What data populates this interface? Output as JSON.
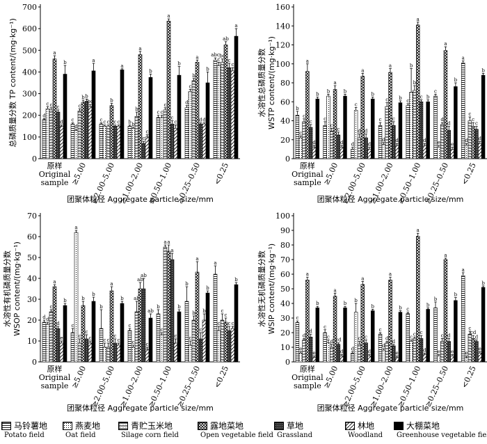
{
  "figure": {
    "categories": [
      "原样\nOriginal\nsample",
      "≥5.00",
      "≥2.00–5.00",
      "≥1.00–2.00",
      "≥0.50–1.00",
      "≥0.25–0.50",
      "<0.25"
    ],
    "xlabel": "团聚体粒径 Aggregate particle size/mm"
  },
  "legend": {
    "items": [
      {
        "cn": "马铃薯地",
        "en": "Potato field",
        "pattern": "p0"
      },
      {
        "cn": "燕麦地",
        "en": "Oat field",
        "pattern": "p1"
      },
      {
        "cn": "青贮玉米地",
        "en": "Silage corn field",
        "pattern": "p2"
      },
      {
        "cn": "露地菜地",
        "en": "Open vegetable field",
        "pattern": "p3"
      },
      {
        "cn": "草地",
        "en": "Grassland",
        "pattern": "p4"
      },
      {
        "cn": "林地",
        "en": "Woodland",
        "pattern": "p5"
      },
      {
        "cn": "大棚菜地",
        "en": "Greenhouse vegetable field",
        "pattern": "p6"
      }
    ]
  },
  "chart_data": [
    {
      "type": "bar",
      "id": "TP",
      "ylabel": "总磷质量分数 TP content/(mg·kg⁻¹)",
      "ylim": [
        0,
        700
      ],
      "yticks": [
        0,
        100,
        200,
        300,
        400,
        500,
        600,
        700
      ],
      "categories": [
        "原样 Original sample",
        "≥5.00",
        "≥2.00–5.00",
        "≥1.00–2.00",
        "≥0.50–1.00",
        "≥0.25–0.50",
        "<0.25"
      ],
      "series": [
        {
          "name": "马铃薯地 Potato field",
          "values": [
            180,
            160,
            160,
            150,
            190,
            235,
            455
          ],
          "errors": [
            5,
            5,
            5,
            5,
            10,
            10,
            10
          ],
          "labels": [
            "d",
            "c",
            "c",
            "b",
            "c",
            "d",
            "abc"
          ]
        },
        {
          "name": "燕麦地 Oat field",
          "values": [
            230,
            130,
            150,
            140,
            190,
            310,
            430
          ],
          "errors": [
            10,
            5,
            5,
            5,
            10,
            10,
            15
          ],
          "labels": [
            "c",
            "d",
            "c",
            "b",
            "c",
            "c",
            "c"
          ]
        },
        {
          "name": "青贮玉米地 Silage corn field",
          "values": [
            225,
            220,
            150,
            195,
            225,
            360,
            445
          ],
          "errors": [
            10,
            10,
            5,
            20,
            10,
            10,
            15
          ],
          "labels": [
            "c",
            "c",
            "c",
            "b",
            "c",
            "b",
            "bc"
          ]
        },
        {
          "name": "露地菜地 Open vegetable field",
          "values": [
            460,
            260,
            245,
            480,
            635,
            445,
            525
          ],
          "errors": [
            15,
            10,
            10,
            15,
            10,
            10,
            15
          ],
          "labels": [
            "a",
            "b",
            "b",
            "a",
            "a",
            "a",
            "ab"
          ]
        },
        {
          "name": "草地 Grassland",
          "values": [
            215,
            265,
            150,
            70,
            160,
            160,
            420
          ],
          "errors": [
            10,
            10,
            5,
            10,
            15,
            5,
            20
          ],
          "labels": [
            "c",
            "b",
            "c",
            "c",
            "c",
            "d",
            "c"
          ]
        },
        {
          "name": "林地 Woodland",
          "values": [
            150,
            240,
            150,
            100,
            140,
            160,
            405
          ],
          "errors": [
            5,
            10,
            5,
            10,
            15,
            5,
            15
          ],
          "labels": [
            "d",
            "bc",
            "c",
            "c",
            "c",
            "d",
            "c"
          ]
        },
        {
          "name": "大棚菜地 Greenhouse vegetable field",
          "values": [
            390,
            405,
            410,
            375,
            385,
            350,
            565
          ],
          "errors": [
            40,
            35,
            5,
            15,
            40,
            50,
            35
          ],
          "labels": [
            "b",
            "a",
            "a",
            "b",
            "b",
            "b",
            "a"
          ]
        }
      ]
    },
    {
      "type": "bar",
      "id": "WSTP",
      "ylabel": "水溶性总磷质量分数 WSTP content/(mg·kg⁻¹)",
      "ylim": [
        0,
        160
      ],
      "yticks": [
        0,
        20,
        40,
        60,
        80,
        100,
        120,
        140,
        160
      ],
      "categories": [
        "原样 Original sample",
        "≥5.00",
        "≥2.00–5.00",
        "≥1.00–2.00",
        "≥0.50–1.00",
        "≥0.25–0.50",
        "<0.25"
      ],
      "series": [
        {
          "name": "马铃薯地 Potato field",
          "values": [
            46,
            35,
            10,
            35,
            56,
            66,
            101
          ],
          "errors": [
            4,
            4,
            2,
            3,
            2,
            2,
            2
          ],
          "labels": [
            "b",
            "c",
            "d",
            "c",
            "c",
            "c",
            "a"
          ]
        },
        {
          "name": "燕麦地 Oat field",
          "values": [
            22,
            66,
            51,
            15,
            70,
            12,
            14
          ],
          "errors": [
            2,
            2,
            3,
            2,
            25,
            2,
            2
          ],
          "labels": [
            "c",
            "b",
            "c",
            "d",
            "b",
            "e",
            "d"
          ]
        },
        {
          "name": "青贮玉米地 Silage corn field",
          "values": [
            39,
            29,
            22,
            55,
            72,
            36,
            40
          ],
          "errors": [
            3,
            3,
            4,
            4,
            5,
            2,
            4
          ],
          "labels": [
            "c",
            "c",
            "d",
            "c",
            "b",
            "d",
            "c"
          ]
        },
        {
          "name": "露地菜地 Open vegetable field",
          "values": [
            92,
            73,
            87,
            91,
            141,
            114,
            34
          ],
          "errors": [
            8,
            4,
            3,
            4,
            3,
            4,
            4
          ],
          "labels": [
            "a",
            "a",
            "a",
            "a",
            "a",
            "a",
            "c"
          ]
        },
        {
          "name": "草地 Grassland",
          "values": [
            33,
            25,
            22,
            35,
            60,
            30,
            31
          ],
          "errors": [
            3,
            3,
            4,
            4,
            2,
            4,
            3
          ],
          "labels": [
            "c",
            "c",
            "d",
            "c",
            "c",
            "d",
            "c"
          ]
        },
        {
          "name": "林地 Woodland",
          "values": [
            12,
            12,
            10,
            14,
            14,
            10,
            16
          ],
          "errors": [
            2,
            2,
            2,
            2,
            2,
            2,
            2
          ],
          "labels": [
            "d",
            "d",
            "d",
            "d",
            "d",
            "e",
            "d"
          ]
        },
        {
          "name": "大棚菜地 Greenhouse vegetable field",
          "values": [
            63,
            66,
            63,
            59,
            60,
            76,
            88
          ],
          "errors": [
            2,
            2,
            2,
            2,
            2,
            4,
            2
          ],
          "labels": [
            "b",
            "b",
            "b",
            "b",
            "b",
            "b",
            "b"
          ]
        }
      ]
    },
    {
      "type": "bar",
      "id": "WSOP",
      "ylabel": "水溶性有机磷质量分数 WSOP content/(mg·kg⁻¹)",
      "ylim": [
        0,
        70
      ],
      "yticks": [
        0,
        10,
        20,
        30,
        40,
        50,
        60,
        70
      ],
      "categories": [
        "原样 Original sample",
        "≥5.00",
        "≥2.00–5.00",
        "≥1.00–2.00",
        "≥0.50–1.00",
        "≥0.25–0.50",
        "<0.25"
      ],
      "series": [
        {
          "name": "马铃薯地 Potato field",
          "values": [
            19,
            14,
            16,
            15,
            23,
            29,
            42
          ],
          "errors": [
            1,
            2,
            9,
            1,
            2,
            7,
            4
          ],
          "labels": [
            "d",
            "c",
            "b",
            "c",
            "b",
            "b",
            "a"
          ]
        },
        {
          "name": "燕麦地 Oat field",
          "values": [
            18,
            62,
            7,
            7,
            13,
            8,
            15
          ],
          "errors": [
            1,
            1,
            2,
            1,
            1,
            2,
            2
          ],
          "labels": [
            "d",
            "a",
            "c",
            "c",
            "c",
            "c",
            "c"
          ]
        },
        {
          "name": "青贮玉米地 Silage corn field",
          "values": [
            24,
            9,
            7,
            24,
            55,
            20,
            20
          ],
          "errors": [
            1,
            2,
            2,
            5,
            1,
            2,
            3
          ],
          "labels": [
            "c",
            "c",
            "c",
            "ab",
            "a",
            "b",
            "c"
          ]
        },
        {
          "name": "露地菜地 Open vegetable field",
          "values": [
            36,
            27,
            34,
            35,
            53,
            43,
            19
          ],
          "errors": [
            1,
            2,
            2,
            3,
            3,
            5,
            2
          ],
          "labels": [
            "a",
            "b",
            "a",
            "ab",
            "a",
            "a",
            "c"
          ]
        },
        {
          "name": "草地 Grassland",
          "values": [
            16,
            11,
            9,
            35,
            49,
            11,
            15
          ],
          "errors": [
            1,
            2,
            2,
            5,
            3,
            3,
            2
          ],
          "labels": [
            "d",
            "c",
            "c",
            "ab",
            "a",
            "c",
            "c"
          ]
        },
        {
          "name": "林地 Woodland",
          "values": [
            9,
            9,
            8,
            6,
            9,
            20,
            16
          ],
          "errors": [
            1,
            1,
            1,
            1,
            2,
            3,
            1
          ],
          "labels": [
            "e",
            "c",
            "c",
            "c",
            "c",
            "b",
            "c"
          ]
        },
        {
          "name": "大棚菜地 Greenhouse vegetable field",
          "values": [
            27,
            29,
            28,
            21,
            24,
            33,
            37
          ],
          "errors": [
            1,
            2,
            1,
            2,
            1,
            1,
            1
          ],
          "labels": [
            "b",
            "b",
            "b",
            "ab",
            "b",
            "b",
            "b"
          ]
        }
      ]
    },
    {
      "type": "bar",
      "id": "WSIP",
      "ylabel": "水溶性无机磷质量分数 WSIP content/(mg·kg⁻¹)",
      "ylim": [
        0,
        100
      ],
      "yticks": [
        0,
        10,
        20,
        30,
        40,
        50,
        60,
        70,
        80,
        90,
        100
      ],
      "categories": [
        "原样 Original sample",
        "≥5.00",
        "≥2.00–5.00",
        "≥1.00–2.00",
        "≥0.50–1.00",
        "≥0.25–0.50",
        "<0.25"
      ],
      "series": [
        {
          "name": "马铃薯地 Potato field",
          "values": [
            27,
            20,
            6,
            19,
            33,
            37,
            59
          ],
          "errors": [
            1,
            2,
            1,
            1,
            1,
            4,
            2
          ],
          "labels": [
            "c",
            "c",
            "d",
            "c",
            "c",
            "b",
            "a"
          ]
        },
        {
          "name": "燕麦地 Oat field",
          "values": [
            6,
            13,
            34,
            8,
            14,
            4,
            3
          ],
          "errors": [
            1,
            2,
            6,
            1,
            1,
            1,
            1
          ],
          "labels": [
            "e",
            "c",
            "b",
            "d",
            "c",
            "e",
            "e"
          ]
        },
        {
          "name": "青贮玉米地 Silage corn field",
          "values": [
            15,
            10,
            12,
            13,
            16,
            14,
            19
          ],
          "errors": [
            1,
            2,
            2,
            1,
            1,
            2,
            2
          ],
          "labels": [
            "d",
            "d",
            "c",
            "d",
            "c",
            "c",
            "c"
          ]
        },
        {
          "name": "露地菜地 Open vegetable field",
          "values": [
            56,
            45,
            53,
            56,
            86,
            70,
            16
          ],
          "errors": [
            2,
            2,
            2,
            2,
            2,
            1,
            2
          ],
          "labels": [
            "a",
            "a",
            "a",
            "a",
            "a",
            "a",
            "cd"
          ]
        },
        {
          "name": "草地 Grassland",
          "values": [
            17,
            12,
            13,
            11,
            16,
            14,
            14
          ],
          "errors": [
            2,
            1,
            2,
            1,
            2,
            2,
            1
          ],
          "labels": [
            "d",
            "cd",
            "c",
            "d",
            "c",
            "d",
            "d"
          ]
        },
        {
          "name": "林地 Woodland",
          "values": [
            3,
            4,
            4,
            3,
            5,
            4,
            6
          ],
          "errors": [
            1,
            1,
            1,
            1,
            1,
            1,
            1
          ],
          "labels": [
            "e",
            "d",
            "d",
            "e",
            "d",
            "e",
            "e"
          ]
        },
        {
          "name": "大棚菜地 Greenhouse vegetable field",
          "values": [
            37,
            37,
            35,
            34,
            36,
            42,
            51
          ],
          "errors": [
            1,
            1,
            1,
            1,
            1,
            2,
            1
          ],
          "labels": [
            "b",
            "b",
            "b",
            "b",
            "b",
            "b",
            "b"
          ]
        }
      ]
    }
  ]
}
